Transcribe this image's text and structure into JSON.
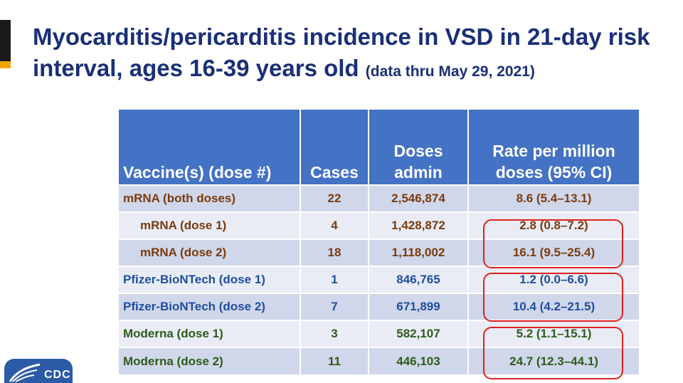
{
  "title": {
    "main": "Myocarditis/pericarditis incidence in VSD in 21-day risk interval, ages 16-39 years old",
    "sub": "(data thru May 29, 2021)"
  },
  "table": {
    "headers": [
      "Vaccine(s) (dose #)",
      "Cases",
      "Doses admin",
      "Rate per million doses (95% CI)"
    ],
    "rows": [
      {
        "vaccine": "mRNA (both doses)",
        "cases": "22",
        "doses": "2,546,874",
        "rate": "8.6 (5.4–13.1)",
        "color": "#7a3b0e"
      },
      {
        "vaccine": "mRNA (dose 1)",
        "cases": "4",
        "doses": "1,428,872",
        "rate": "2.8 (0.8–7.2)",
        "color": "#7a3b0e"
      },
      {
        "vaccine": "mRNA (dose 2)",
        "cases": "18",
        "doses": "1,118,002",
        "rate": "16.1 (9.5–25.4)",
        "color": "#7a3b0e"
      },
      {
        "vaccine": "Pfizer-BioNTech (dose 1)",
        "cases": "1",
        "doses": "846,765",
        "rate": "1.2 (0.0–6.6)",
        "color": "#1f4e9e"
      },
      {
        "vaccine": "Pfizer-BioNTech (dose 2)",
        "cases": "7",
        "doses": "671,899",
        "rate": "10.4 (4.2–21.5)",
        "color": "#1f4e9e"
      },
      {
        "vaccine": "Moderna (dose 1)",
        "cases": "3",
        "doses": "582,107",
        "rate": "5.2 (1.1–15.1)",
        "color": "#2f5b1a"
      },
      {
        "vaccine": "Moderna (dose 2)",
        "cases": "11",
        "doses": "446,103",
        "rate": "24.7 (12.3–44.1)",
        "color": "#2f5b1a"
      }
    ]
  },
  "logo": {
    "text": "CDC"
  },
  "colors": {
    "header_bg": "#4472c4",
    "title": "#1a2f78",
    "highlight": "#e02020"
  }
}
